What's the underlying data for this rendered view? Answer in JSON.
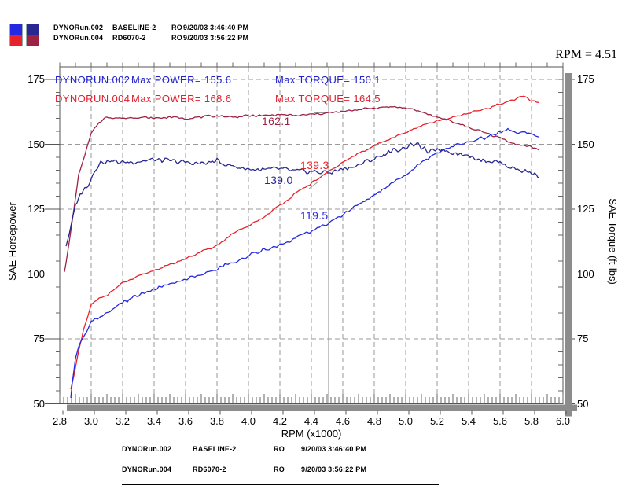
{
  "colors": {
    "power_002": "#2428e0",
    "power_004": "#e8222a",
    "torque_002": "#282890",
    "torque_004": "#9e2244",
    "grid": "#9a9a9a",
    "cursor": "#8a8a8a",
    "shadow": "#8c8c8c",
    "border": "#555555"
  },
  "runs": [
    {
      "file": "DYNORun.002",
      "label": "BASELINE-2",
      "ro": "RO",
      "datetime": "9/20/03 3:46:40 PM"
    },
    {
      "file": "DYNORun.004",
      "label": "RD6070-2",
      "ro": "RO",
      "datetime": "9/20/03 3:56:22 PM"
    }
  ],
  "cursor_readout": "RPM = 4.51",
  "annotations": [
    {
      "run": "DYNORUN.002",
      "power": "Max POWER= 155.6",
      "torque": "Max TORQUE= 150.1"
    },
    {
      "run": "DYNORUN.004",
      "power": "Max POWER= 168.6",
      "torque": "Max TORQUE= 164.5"
    }
  ],
  "chart_data": {
    "type": "line",
    "x_axis": {
      "label": "RPM (x1000)",
      "min": 2.8,
      "max": 6.0,
      "tick_labels": [
        "2.8",
        "3.0",
        "3.2",
        "3.4",
        "3.6",
        "3.8",
        "4.0",
        "4.2",
        "4.4",
        "4.6",
        "4.8",
        "5.0",
        "5.2",
        "5.4",
        "5.6",
        "5.8",
        "6.0"
      ]
    },
    "y_left": {
      "label": "SAE Horsepower",
      "min": 50,
      "max": 175,
      "tick_labels": [
        "50",
        "75",
        "100",
        "125",
        "150",
        "175"
      ]
    },
    "y_right": {
      "label": "SAE Torque (ft-lbs)",
      "min": 50,
      "max": 175,
      "tick_labels": [
        "50",
        "75",
        "100",
        "125",
        "150",
        "175"
      ]
    },
    "grid": true,
    "max": {
      "run2_power": 155.6,
      "run4_power": 168.6,
      "run2_torque": 150.1,
      "run4_torque": 164.5
    },
    "cursor": {
      "rpm": 4.51,
      "run4_torque": "162.1",
      "run4_power": "139.3",
      "run2_torque": "139.0",
      "run2_power": "119.5"
    },
    "series": [
      {
        "name": "DYNORUN.004 Torque",
        "color_key": "torque_004",
        "noise": 0.5,
        "seed": 7,
        "points": [
          [
            2.83,
            101
          ],
          [
            2.86,
            112
          ],
          [
            2.89,
            125
          ],
          [
            2.92,
            138
          ],
          [
            2.96,
            146
          ],
          [
            3.0,
            154
          ],
          [
            3.05,
            158.5
          ],
          [
            3.1,
            160.5
          ],
          [
            3.2,
            160
          ],
          [
            3.3,
            160.5
          ],
          [
            3.4,
            160
          ],
          [
            3.5,
            160.5
          ],
          [
            3.6,
            160
          ],
          [
            3.7,
            160.5
          ],
          [
            3.8,
            161
          ],
          [
            3.9,
            160.5
          ],
          [
            4.0,
            161
          ],
          [
            4.1,
            161
          ],
          [
            4.2,
            161.5
          ],
          [
            4.3,
            161
          ],
          [
            4.4,
            161.5
          ],
          [
            4.51,
            162.1
          ],
          [
            4.6,
            162.5
          ],
          [
            4.7,
            163.5
          ],
          [
            4.8,
            164
          ],
          [
            4.9,
            164.5
          ],
          [
            5.0,
            164
          ],
          [
            5.1,
            162.5
          ],
          [
            5.2,
            160.5
          ],
          [
            5.27,
            159.5
          ],
          [
            5.3,
            158.5
          ],
          [
            5.4,
            156.5
          ],
          [
            5.5,
            154.5
          ],
          [
            5.6,
            152.5
          ],
          [
            5.7,
            150
          ],
          [
            5.8,
            149
          ],
          [
            5.85,
            148
          ]
        ]
      },
      {
        "name": "DYNORUN.002 Torque",
        "color_key": "torque_002",
        "noise": 1.2,
        "seed": 3,
        "points": [
          [
            2.84,
            111
          ],
          [
            2.87,
            118
          ],
          [
            2.9,
            126
          ],
          [
            2.93,
            131
          ],
          [
            2.97,
            133.5
          ],
          [
            3.0,
            137
          ],
          [
            3.03,
            141
          ],
          [
            3.06,
            143
          ],
          [
            3.1,
            143.5
          ],
          [
            3.2,
            143
          ],
          [
            3.3,
            143.5
          ],
          [
            3.4,
            144
          ],
          [
            3.5,
            143.5
          ],
          [
            3.6,
            143
          ],
          [
            3.7,
            142.5
          ],
          [
            3.8,
            143.5
          ],
          [
            3.9,
            141.5
          ],
          [
            4.0,
            140.5
          ],
          [
            4.1,
            140
          ],
          [
            4.2,
            140.5
          ],
          [
            4.3,
            139.5
          ],
          [
            4.4,
            139.5
          ],
          [
            4.51,
            139.0
          ],
          [
            4.6,
            140.5
          ],
          [
            4.7,
            142
          ],
          [
            4.8,
            144.5
          ],
          [
            4.9,
            147
          ],
          [
            5.0,
            149
          ],
          [
            5.05,
            150.1
          ],
          [
            5.1,
            149
          ],
          [
            5.15,
            146.5
          ],
          [
            5.2,
            148.5
          ],
          [
            5.3,
            147
          ],
          [
            5.4,
            145.5
          ],
          [
            5.5,
            144
          ],
          [
            5.6,
            143
          ],
          [
            5.7,
            140.5
          ],
          [
            5.8,
            139
          ],
          [
            5.85,
            138
          ]
        ]
      },
      {
        "name": "DYNORUN.004 Power",
        "color_key": "power_004",
        "noise": 0.45,
        "seed": 11,
        "points": [
          [
            2.87,
            55.5
          ],
          [
            2.9,
            64
          ],
          [
            2.92,
            70
          ],
          [
            2.95,
            78
          ],
          [
            3.0,
            88
          ],
          [
            3.05,
            90.5
          ],
          [
            3.1,
            92
          ],
          [
            3.2,
            96.5
          ],
          [
            3.3,
            99
          ],
          [
            3.4,
            101.5
          ],
          [
            3.5,
            103.5
          ],
          [
            3.6,
            106
          ],
          [
            3.7,
            108.5
          ],
          [
            3.8,
            111
          ],
          [
            3.9,
            115.5
          ],
          [
            4.0,
            118.5
          ],
          [
            4.1,
            122
          ],
          [
            4.2,
            126.5
          ],
          [
            4.3,
            131
          ],
          [
            4.4,
            135
          ],
          [
            4.51,
            139.3
          ],
          [
            4.6,
            143
          ],
          [
            4.7,
            146.5
          ],
          [
            4.8,
            149.5
          ],
          [
            4.9,
            152
          ],
          [
            5.0,
            154.5
          ],
          [
            5.1,
            157
          ],
          [
            5.2,
            159
          ],
          [
            5.27,
            159.8
          ],
          [
            5.3,
            160.5
          ],
          [
            5.4,
            162
          ],
          [
            5.5,
            163.5
          ],
          [
            5.6,
            165.5
          ],
          [
            5.7,
            167.5
          ],
          [
            5.75,
            168.6
          ],
          [
            5.8,
            166.5
          ],
          [
            5.85,
            166
          ]
        ]
      },
      {
        "name": "DYNORUN.002 Power",
        "color_key": "power_002",
        "noise": 0.8,
        "seed": 19,
        "points": [
          [
            2.87,
            52
          ],
          [
            2.88,
            58
          ],
          [
            2.9,
            67
          ],
          [
            2.92,
            72.5
          ],
          [
            2.95,
            75.5
          ],
          [
            3.0,
            81.5
          ],
          [
            3.05,
            83
          ],
          [
            3.1,
            84.5
          ],
          [
            3.2,
            89
          ],
          [
            3.3,
            92
          ],
          [
            3.4,
            94
          ],
          [
            3.5,
            96
          ],
          [
            3.6,
            98
          ],
          [
            3.7,
            100
          ],
          [
            3.8,
            102
          ],
          [
            3.9,
            104.5
          ],
          [
            4.0,
            107
          ],
          [
            4.1,
            109.5
          ],
          [
            4.2,
            111
          ],
          [
            4.3,
            114
          ],
          [
            4.4,
            116.5
          ],
          [
            4.51,
            119.5
          ],
          [
            4.6,
            123
          ],
          [
            4.7,
            126.5
          ],
          [
            4.8,
            130.5
          ],
          [
            4.9,
            134.5
          ],
          [
            5.0,
            138.5
          ],
          [
            5.1,
            143
          ],
          [
            5.2,
            146.5
          ],
          [
            5.3,
            149.5
          ],
          [
            5.4,
            151
          ],
          [
            5.5,
            152.5
          ],
          [
            5.6,
            154.5
          ],
          [
            5.65,
            155.6
          ],
          [
            5.7,
            154.5
          ],
          [
            5.78,
            154.5
          ],
          [
            5.85,
            153
          ]
        ]
      }
    ]
  }
}
